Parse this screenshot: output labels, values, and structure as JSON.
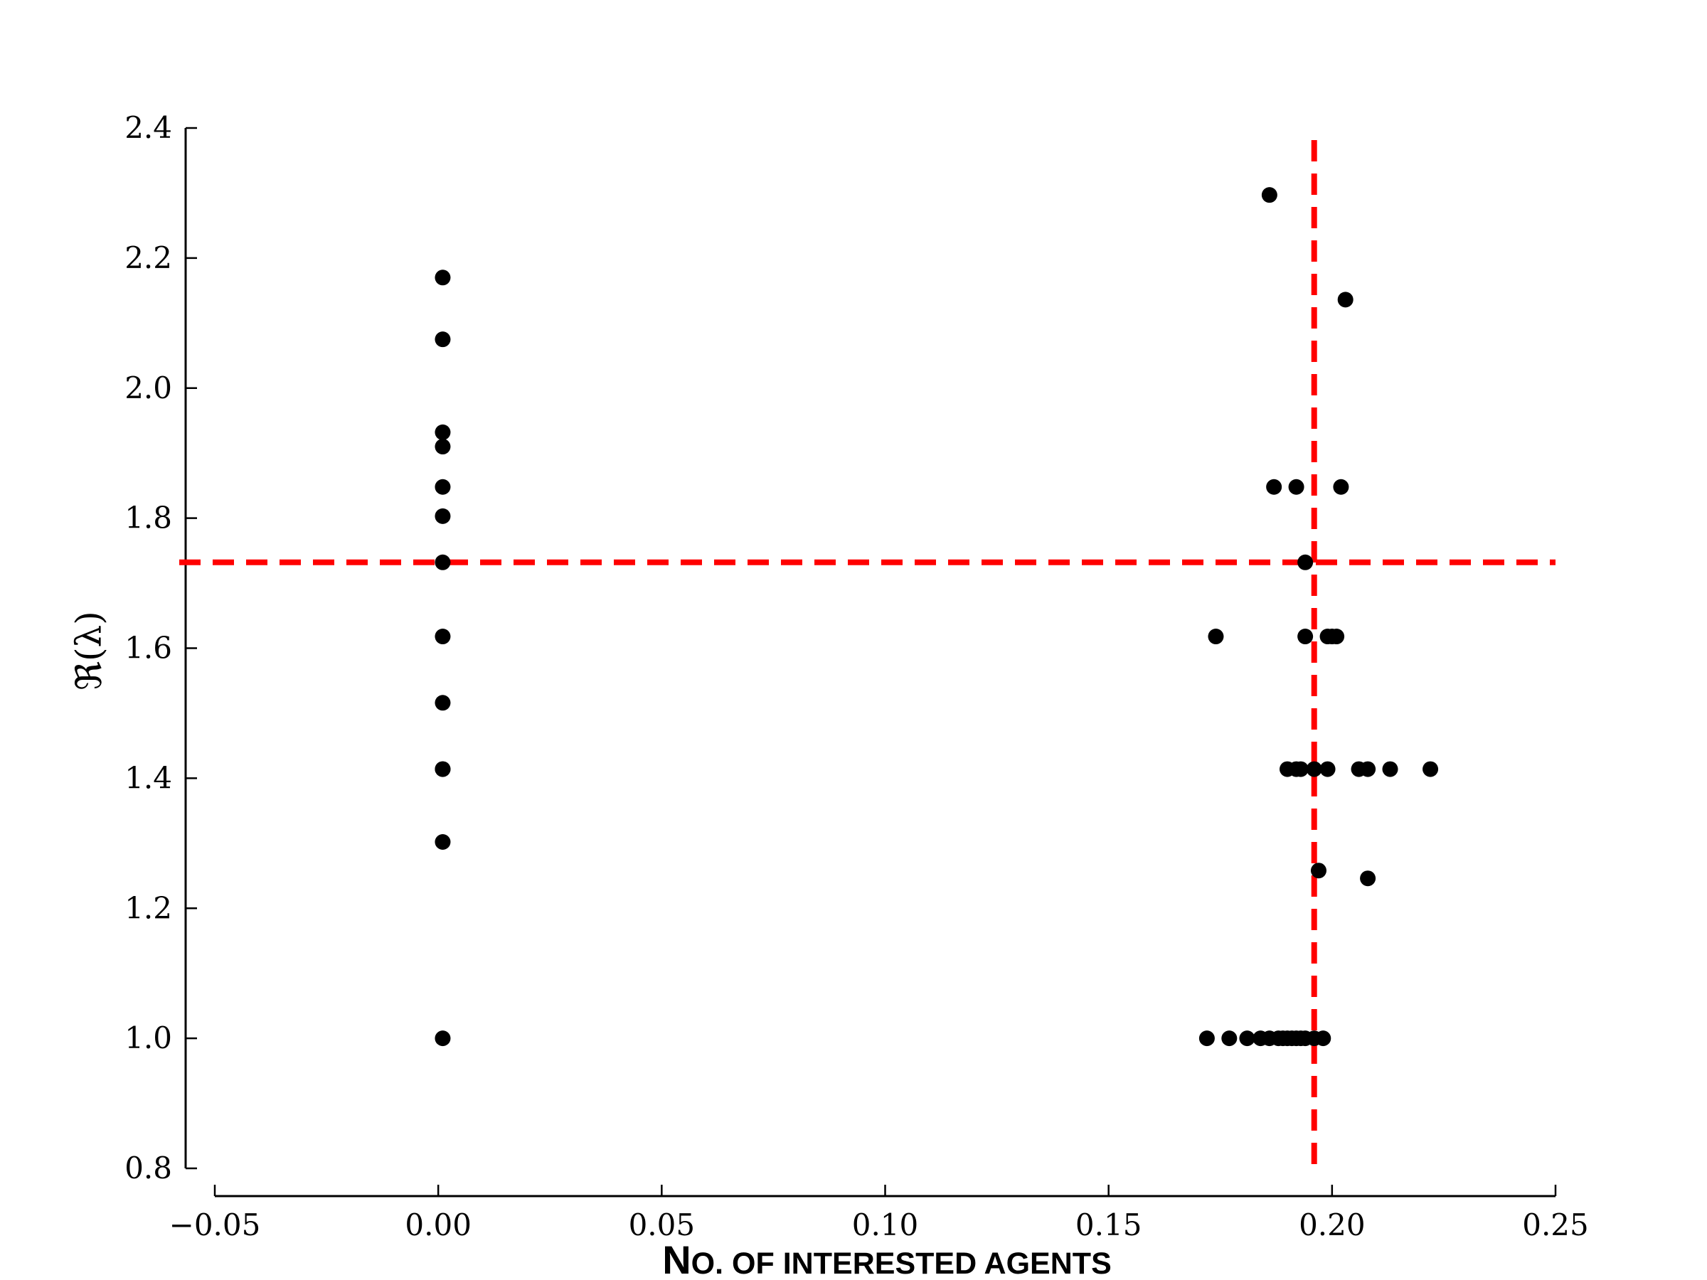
{
  "chart_data": {
    "type": "scatter",
    "title": "",
    "xlabel": "No. of interested agents",
    "ylabel": "ℜ(λ)",
    "xlim": [
      -0.05,
      0.25
    ],
    "ylim": [
      0.8,
      2.4
    ],
    "x_ticks": [
      -0.05,
      0.0,
      0.05,
      0.1,
      0.15,
      0.2,
      0.25
    ],
    "x_tick_labels": [
      "−0.05",
      "0.00",
      "0.05",
      "0.10",
      "0.15",
      "0.20",
      "0.25"
    ],
    "y_ticks": [
      0.8,
      1.0,
      1.2,
      1.4,
      1.6,
      1.8,
      2.0,
      2.2,
      2.4
    ],
    "y_tick_labels": [
      "0.8",
      "1.0",
      "1.2",
      "1.4",
      "1.6",
      "1.8",
      "2.0",
      "2.2",
      "2.4"
    ],
    "grid": false,
    "marker_color": "#000000",
    "reference_line_color": "#ff0000",
    "hline_y": 1.732,
    "vline_x": 0.196,
    "series": [
      {
        "x": [
          0.001,
          0.001,
          0.001,
          0.001,
          0.001,
          0.001,
          0.001,
          0.001,
          0.001,
          0.001,
          0.001,
          0.001,
          0.001,
          0.186,
          0.203,
          0.187,
          0.192,
          0.202,
          0.194,
          0.174,
          0.194,
          0.199,
          0.2,
          0.201,
          0.19,
          0.192,
          0.193,
          0.196,
          0.199,
          0.206,
          0.208,
          0.213,
          0.222,
          0.197,
          0.208,
          0.172,
          0.177,
          0.181,
          0.184,
          0.186,
          0.188,
          0.189,
          0.19,
          0.191,
          0.192,
          0.193,
          0.194,
          0.196,
          0.198
        ],
        "y": [
          2.17,
          2.075,
          1.932,
          1.91,
          1.848,
          1.803,
          1.732,
          1.618,
          1.516,
          1.414,
          1.414,
          1.302,
          1.0,
          2.297,
          2.136,
          1.848,
          1.848,
          1.848,
          1.732,
          1.618,
          1.618,
          1.618,
          1.618,
          1.618,
          1.414,
          1.414,
          1.414,
          1.414,
          1.414,
          1.414,
          1.414,
          1.414,
          1.414,
          1.258,
          1.246,
          1.0,
          1.0,
          1.0,
          1.0,
          1.0,
          1.0,
          1.0,
          1.0,
          1.0,
          1.0,
          1.0,
          1.0,
          1.0,
          1.0
        ]
      }
    ]
  }
}
